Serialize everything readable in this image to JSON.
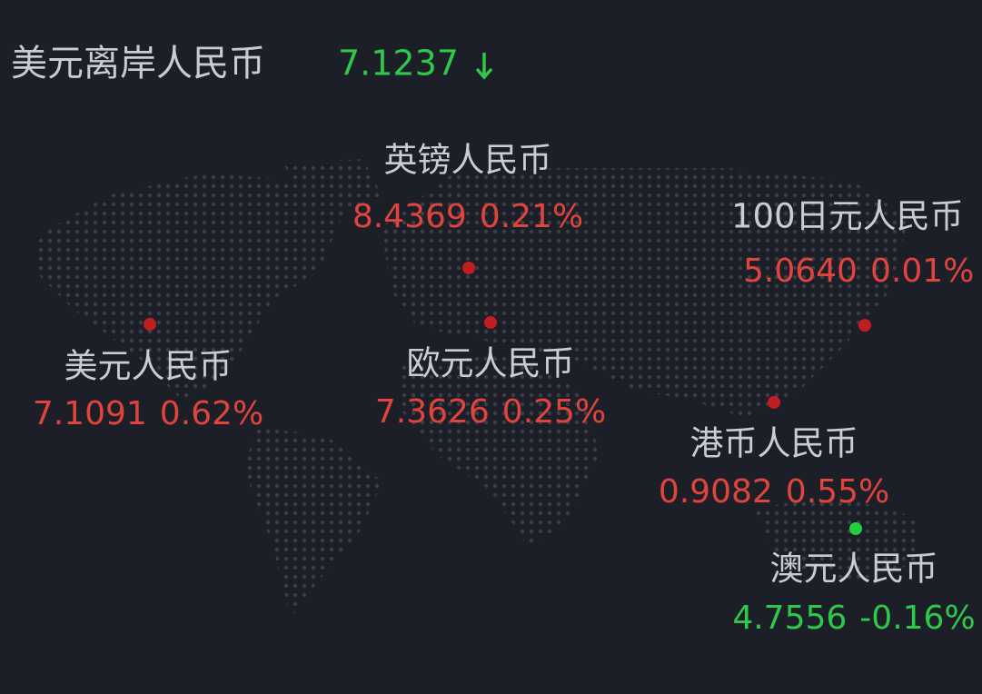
{
  "header": {
    "title": "美元离岸人民币",
    "value": "7.1237"
  },
  "rates": [
    {
      "name": "英镑人民币",
      "price": "8.4369",
      "change": "0.21%"
    },
    {
      "name": "100日元人民币",
      "price": "5.0640",
      "change": "0.01%"
    },
    {
      "name": "美元人民币",
      "price": "7.1091",
      "change": "0.62%"
    },
    {
      "name": "欧元人民币",
      "price": "7.3626",
      "change": "0.25%"
    },
    {
      "name": "港币人民币",
      "price": "0.9082",
      "change": "0.55%"
    },
    {
      "name": "澳元人民币",
      "price": "4.7556",
      "change": "-0.16%"
    }
  ]
}
